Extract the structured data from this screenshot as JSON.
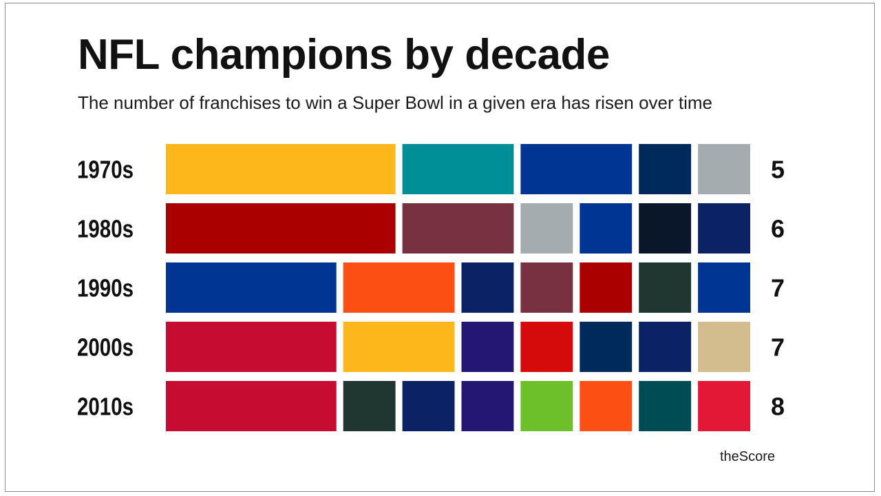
{
  "title": "NFL champions by decade",
  "subtitle": "The number of franchises to win a Super Bowl in a given era has risen over time",
  "source": "theScore",
  "chart_data": {
    "type": "bar",
    "categories": [
      "1970s",
      "1980s",
      "1990s",
      "2000s",
      "2010s"
    ],
    "values": [
      5,
      6,
      7,
      7,
      8
    ],
    "rows": [
      {
        "label": "1970s",
        "count": "5",
        "blocks": [
          {
            "units": 4,
            "color": "#FDB71A"
          },
          {
            "units": 2,
            "color": "#008E97"
          },
          {
            "units": 2,
            "color": "#003594"
          },
          {
            "units": 1,
            "color": "#002A5C"
          },
          {
            "units": 1,
            "color": "#A5ACAF"
          }
        ]
      },
      {
        "label": "1980s",
        "count": "6",
        "blocks": [
          {
            "units": 4,
            "color": "#AA0000"
          },
          {
            "units": 2,
            "color": "#773141"
          },
          {
            "units": 1,
            "color": "#A5ACAF"
          },
          {
            "units": 1,
            "color": "#003594"
          },
          {
            "units": 1,
            "color": "#0A162A"
          },
          {
            "units": 1,
            "color": "#0B2265"
          }
        ]
      },
      {
        "label": "1990s",
        "count": "7",
        "blocks": [
          {
            "units": 3,
            "color": "#003594"
          },
          {
            "units": 2,
            "color": "#FB4F14"
          },
          {
            "units": 1,
            "color": "#0B2265"
          },
          {
            "units": 1,
            "color": "#773141"
          },
          {
            "units": 1,
            "color": "#AA0000"
          },
          {
            "units": 1,
            "color": "#203731"
          },
          {
            "units": 1,
            "color": "#003594"
          }
        ]
      },
      {
        "label": "2000s",
        "count": "7",
        "blocks": [
          {
            "units": 3,
            "color": "#C60C30"
          },
          {
            "units": 2,
            "color": "#FDB71A"
          },
          {
            "units": 1,
            "color": "#241773"
          },
          {
            "units": 1,
            "color": "#D50A0A"
          },
          {
            "units": 1,
            "color": "#002A5C"
          },
          {
            "units": 1,
            "color": "#0B2265"
          },
          {
            "units": 1,
            "color": "#D3BC8D"
          }
        ]
      },
      {
        "label": "2010s",
        "count": "8",
        "blocks": [
          {
            "units": 3,
            "color": "#C60C30"
          },
          {
            "units": 1,
            "color": "#203731"
          },
          {
            "units": 1,
            "color": "#0B2265"
          },
          {
            "units": 1,
            "color": "#241773"
          },
          {
            "units": 1,
            "color": "#6DC02A"
          },
          {
            "units": 1,
            "color": "#FB4F14"
          },
          {
            "units": 1,
            "color": "#004C54"
          },
          {
            "units": 1,
            "color": "#E31837"
          }
        ]
      }
    ],
    "xlabel": "",
    "ylabel": "",
    "grid": false,
    "legend": "none"
  }
}
